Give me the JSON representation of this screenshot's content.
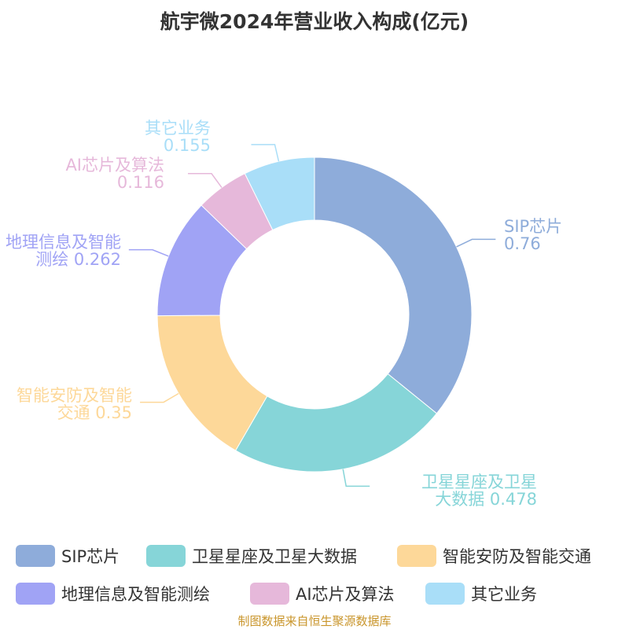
{
  "chart_data": {
    "type": "pie",
    "donut": true,
    "title": "航宇微2024年营业收入构成(亿元)",
    "categories": [
      "SIP芯片",
      "卫星星座及卫星大数据",
      "智能安防及智能交通",
      "地理信息及智能测绘",
      "AI芯片及算法",
      "其它业务"
    ],
    "values": [
      0.76,
      0.478,
      0.35,
      0.262,
      0.116,
      0.155
    ],
    "colors": [
      "#8eacda",
      "#86d5d8",
      "#fdd899",
      "#a0a3f5",
      "#e6b8da",
      "#a9def8"
    ],
    "labels": [
      {
        "l1": "SIP芯片",
        "l2": "0.76"
      },
      {
        "l1": "卫星星座及卫星",
        "l2": "大数据 0.478"
      },
      {
        "l1": "智能安防及智能",
        "l2": "交通 0.35"
      },
      {
        "l1": "地理信息及智能",
        "l2": "测绘 0.262"
      },
      {
        "l1": "AI芯片及算法",
        "l2": "0.116"
      },
      {
        "l1": "其它业务",
        "l2": "0.155"
      }
    ],
    "legend_position": "bottom"
  },
  "footer": "制图数据来自恒生聚源数据库"
}
